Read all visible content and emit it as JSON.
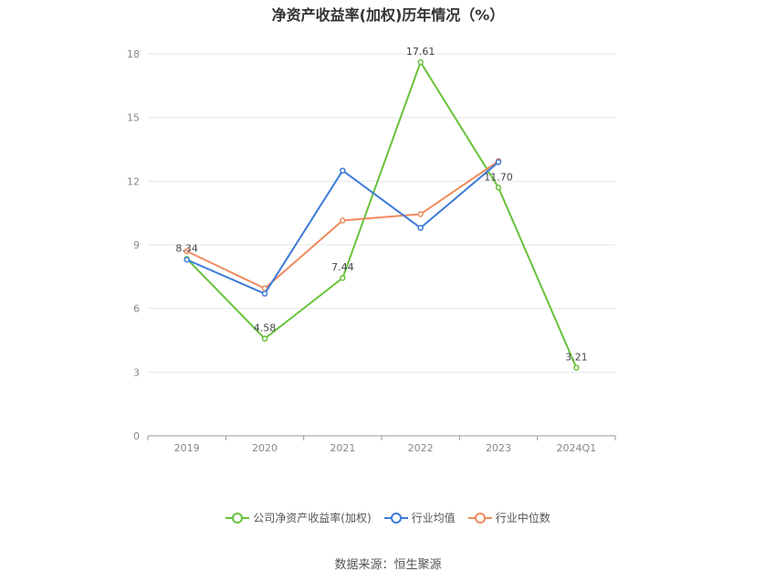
{
  "chart_data": {
    "type": "line",
    "title": "净资产收益率(加权)历年情况（%）",
    "categories": [
      "2019",
      "2020",
      "2021",
      "2022",
      "2023",
      "2024Q1"
    ],
    "ylim": [
      0,
      18
    ],
    "yticks": [
      0,
      3,
      6,
      9,
      12,
      15,
      18
    ],
    "grid": true,
    "legend_position": "bottom",
    "series": [
      {
        "name": "公司净资产收益率(加权)",
        "color": "#67c23a",
        "values": [
          8.34,
          4.58,
          7.44,
          17.61,
          11.7,
          3.21
        ],
        "labels": [
          "8.34",
          "4.58",
          "7.44",
          "17.61",
          "11.70",
          "3.21"
        ]
      },
      {
        "name": "行业均值",
        "color": "#3d7bd9",
        "values": [
          8.3,
          6.7,
          12.5,
          9.8,
          12.9,
          null
        ]
      },
      {
        "name": "行业中位数",
        "color": "#f08a5d",
        "values": [
          8.7,
          6.95,
          10.15,
          10.45,
          12.95,
          null
        ]
      }
    ]
  },
  "source": "数据来源：恒生聚源"
}
